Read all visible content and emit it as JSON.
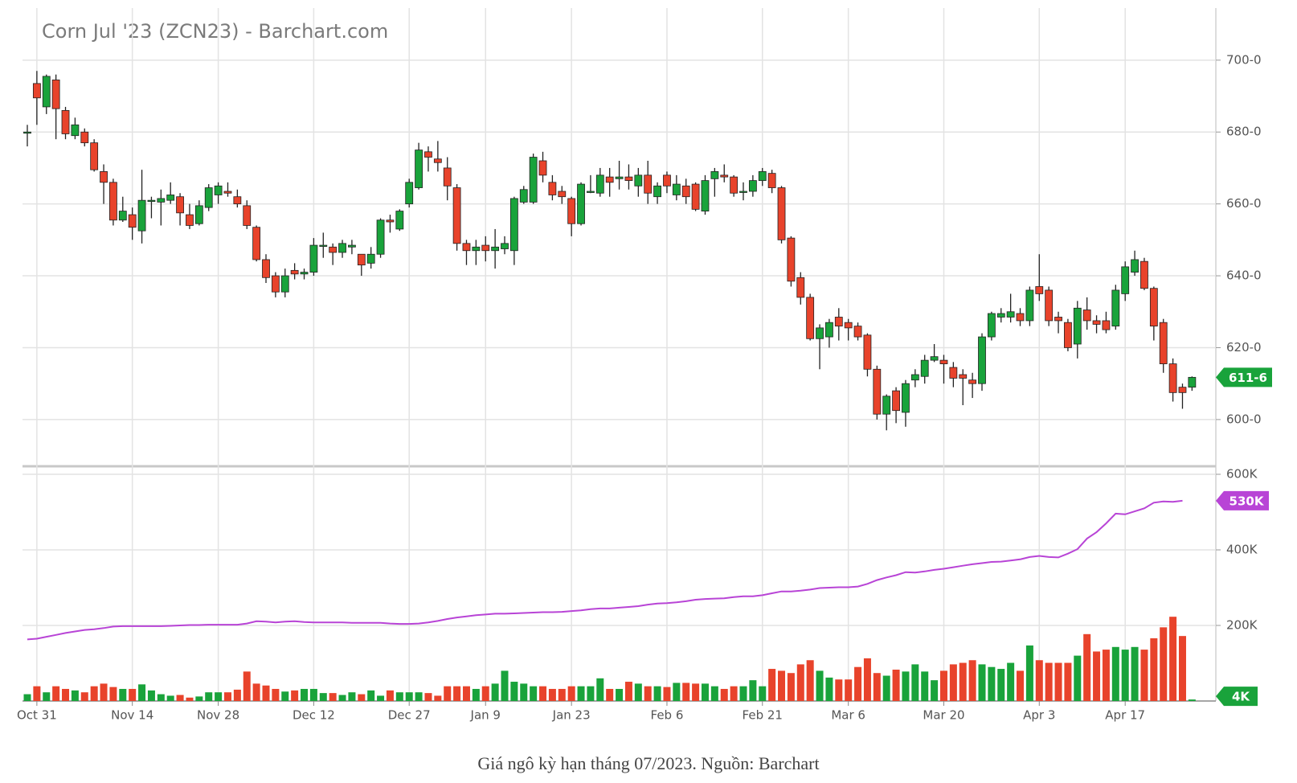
{
  "chart_data": {
    "type": "candlestick",
    "title": "Corn Jul '23 (ZCN23) - Barchart.com",
    "categories": [
      null,
      "Oct 31",
      null,
      null,
      null,
      null,
      null,
      null,
      null,
      null,
      null,
      "Nov 14",
      null,
      null,
      null,
      null,
      null,
      null,
      null,
      null,
      "Nov 28",
      null,
      null,
      null,
      null,
      null,
      null,
      null,
      null,
      null,
      "Dec 12",
      null,
      null,
      null,
      null,
      null,
      null,
      null,
      null,
      null,
      "Dec 27",
      null,
      null,
      null,
      null,
      null,
      null,
      null,
      "Jan 9",
      null,
      null,
      null,
      null,
      null,
      null,
      null,
      null,
      "Jan 23",
      null,
      null,
      null,
      null,
      null,
      null,
      null,
      null,
      null,
      "Feb 6",
      null,
      null,
      null,
      null,
      null,
      null,
      null,
      null,
      null,
      "Feb 21",
      null,
      null,
      null,
      null,
      null,
      null,
      null,
      null,
      "Mar 6",
      null,
      null,
      null,
      null,
      null,
      null,
      null,
      null,
      null,
      "Mar 20",
      null,
      null,
      null,
      null,
      null,
      null,
      null,
      null,
      null,
      "Apr 3",
      null,
      null,
      null,
      null,
      null,
      null,
      null,
      null,
      "Apr 17",
      null,
      null,
      null,
      null,
      null,
      null,
      null
    ],
    "open": [
      680,
      693.5,
      687,
      694.5,
      686,
      679,
      680,
      677,
      669,
      666,
      655.5,
      657,
      652.5,
      661,
      660.5,
      661,
      662,
      657,
      654.5,
      659,
      662.5,
      663.5,
      662,
      659.5,
      653.5,
      644.5,
      640,
      635.5,
      641.5,
      640.5,
      641,
      648.5,
      648,
      646.5,
      648,
      646,
      643.5,
      646,
      655.5,
      653,
      660,
      664.5,
      674.5,
      672.5,
      670,
      664.5,
      649,
      647,
      648.5,
      647,
      647.5,
      647,
      660.5,
      660.5,
      672,
      666,
      663.5,
      661.5,
      654.5,
      663.5,
      663,
      667.5,
      667,
      667.5,
      665,
      668,
      662,
      668,
      662.5,
      665,
      665.5,
      658,
      667,
      668,
      667.5,
      663.5,
      663.5,
      666.5,
      668.5,
      664.5,
      650.5,
      639.5,
      634,
      622.5,
      623,
      628.5,
      627,
      626,
      623.5,
      614,
      601.5,
      608,
      602,
      611,
      612,
      616.5,
      616.5,
      614.5,
      612.5,
      611,
      610,
      623,
      628.5,
      628.5,
      629.5,
      627.5,
      637,
      636,
      628.5,
      627,
      621,
      630.5,
      627.5,
      627.5,
      626,
      635,
      641,
      644,
      636.5,
      627,
      615.5,
      609,
      609
    ],
    "high": [
      682,
      697,
      696,
      696,
      687,
      684,
      681,
      678,
      671,
      667,
      662,
      659,
      669.5,
      662,
      664,
      666,
      663,
      660,
      661,
      665.5,
      666,
      666,
      664,
      661,
      654,
      646,
      641,
      642,
      643.5,
      642,
      650.5,
      652,
      649,
      650,
      650,
      646,
      648,
      656,
      657,
      658.5,
      667,
      677,
      676,
      677.5,
      673,
      665.5,
      650,
      650,
      651,
      653,
      651,
      662,
      665,
      674,
      674.5,
      668,
      665,
      662,
      666,
      668,
      670,
      670,
      672,
      671,
      670,
      672,
      666,
      669,
      668,
      667,
      666,
      668,
      670,
      671,
      668,
      666,
      668,
      670,
      669.5,
      665,
      651,
      641,
      635,
      626.5,
      628,
      631,
      628,
      627,
      624,
      615,
      607,
      609,
      611,
      614,
      618,
      621,
      618,
      616,
      614,
      613,
      624,
      630,
      631,
      635,
      631,
      637,
      646,
      637,
      630,
      628,
      633,
      634,
      629,
      630,
      637.5,
      644,
      647,
      645,
      637,
      628,
      617,
      610,
      612
    ],
    "low": [
      676,
      682,
      685,
      678,
      678,
      678,
      676,
      669,
      660,
      654,
      655,
      650,
      649,
      656,
      654,
      660,
      654,
      653,
      654,
      658,
      660,
      662,
      659,
      653,
      644,
      638,
      634,
      634,
      639,
      639,
      640,
      645,
      643,
      645,
      646,
      640,
      642,
      645,
      652,
      652.5,
      659,
      664,
      669,
      669,
      661,
      647,
      643,
      643,
      644,
      642,
      646,
      643,
      660,
      660,
      666,
      661,
      660,
      651,
      654,
      663,
      662,
      662,
      664,
      664,
      662,
      660,
      660,
      663,
      661,
      660,
      658,
      657,
      662,
      666,
      662,
      661,
      662,
      665,
      663,
      649,
      637,
      632,
      622,
      614,
      620,
      622,
      622,
      622,
      612,
      600,
      597,
      599,
      598,
      609,
      610,
      616,
      610,
      609,
      604,
      606,
      608,
      622,
      627,
      627,
      626,
      626,
      633,
      626,
      624,
      619,
      617,
      625,
      624,
      624,
      625,
      633,
      640,
      636,
      622,
      613,
      605,
      603,
      608
    ],
    "close": [
      680,
      689.5,
      695.5,
      686.5,
      679.5,
      682,
      677,
      669.5,
      666,
      655.5,
      658,
      653.5,
      661,
      661,
      661.5,
      662.5,
      657.5,
      654,
      659.5,
      664.5,
      665,
      663,
      660,
      654,
      644.5,
      639.5,
      635.5,
      640,
      640.5,
      641,
      648.5,
      648.5,
      646.5,
      649,
      648.5,
      643,
      646,
      655.5,
      655,
      658,
      666,
      675,
      673,
      671.5,
      665,
      649,
      647,
      648,
      647,
      648,
      649,
      661.5,
      664,
      673,
      668,
      662.5,
      662,
      654.5,
      665.5,
      663.5,
      668,
      666,
      667.5,
      666.5,
      668,
      663,
      665,
      665,
      665.5,
      662,
      658.5,
      666.5,
      669,
      667.5,
      663,
      663.5,
      666.5,
      669,
      664.5,
      650,
      638.5,
      634,
      622.5,
      625.5,
      627,
      626,
      625.5,
      623,
      614,
      601.5,
      606.5,
      602.5,
      610,
      612.5,
      616.5,
      617.5,
      615.5,
      611.5,
      611.5,
      610,
      623,
      629.5,
      629.5,
      630,
      627.5,
      636,
      635,
      627.5,
      627.5,
      620,
      631,
      627.5,
      626.5,
      625,
      636,
      642.5,
      644.5,
      636.5,
      626,
      615.5,
      607.5,
      607.5,
      611.75
    ],
    "up_color": "#19a33b",
    "down_color": "#e8432b",
    "ylim": [
      587,
      714.5
    ],
    "yticks": [
      {
        "value": 600,
        "label": "600-0"
      },
      {
        "value": 620,
        "label": "620-0"
      },
      {
        "value": 640,
        "label": "640-0"
      },
      {
        "value": 660,
        "label": "660-0"
      },
      {
        "value": 680,
        "label": "680-0"
      },
      {
        "value": 700,
        "label": "700-0"
      }
    ],
    "last_label": "611-6",
    "grid": true,
    "volume": {
      "values": [
        18000,
        39000,
        23000,
        39000,
        32000,
        28000,
        23000,
        39000,
        46000,
        37000,
        32000,
        32000,
        44000,
        28000,
        18000,
        14000,
        16000,
        9000,
        12000,
        23000,
        23000,
        23000,
        30000,
        78000,
        46000,
        41000,
        32000,
        25000,
        28000,
        32000,
        32000,
        21000,
        21000,
        16000,
        23000,
        18000,
        28000,
        14000,
        28000,
        23000,
        23000,
        23000,
        21000,
        14000,
        39000,
        39000,
        39000,
        32000,
        39000,
        46000,
        80000,
        51000,
        46000,
        39000,
        39000,
        32000,
        32000,
        39000,
        39000,
        39000,
        60000,
        32000,
        32000,
        51000,
        46000,
        39000,
        39000,
        37000,
        48000,
        48000,
        46000,
        46000,
        39000,
        32000,
        39000,
        39000,
        55000,
        39000,
        85000,
        80000,
        74000,
        97000,
        108000,
        80000,
        62000,
        57000,
        57000,
        90000,
        113000,
        74000,
        67000,
        83000,
        78000,
        97000,
        78000,
        55000,
        80000,
        97000,
        101000,
        108000,
        97000,
        90000,
        85000,
        101000,
        80000,
        147000,
        108000,
        101000,
        101000,
        101000,
        120000,
        177000,
        131000,
        136000,
        143000,
        136000,
        143000,
        136000,
        166000,
        195000,
        223000,
        172000,
        4000
      ],
      "ylim": [
        0,
        600000
      ],
      "yticks": [
        {
          "value": 200000,
          "label": "200K"
        },
        {
          "value": 400000,
          "label": "400K"
        },
        {
          "value": 600000,
          "label": "600K"
        }
      ],
      "last_label": "4K"
    },
    "open_interest": {
      "values": [
        163000,
        165000,
        170000,
        175000,
        180000,
        184000,
        188000,
        190000,
        193000,
        197000,
        198000,
        198000,
        198000,
        198000,
        198000,
        199000,
        200000,
        201000,
        201000,
        202000,
        202000,
        202000,
        202000,
        205000,
        211000,
        210000,
        208000,
        210000,
        211000,
        209000,
        208000,
        208000,
        208000,
        208000,
        207000,
        207000,
        207000,
        207000,
        205000,
        204000,
        204000,
        205000,
        208000,
        212000,
        217000,
        221000,
        224000,
        227000,
        229000,
        231000,
        231000,
        232000,
        233000,
        234000,
        235000,
        235000,
        236000,
        238000,
        240000,
        243000,
        245000,
        245000,
        247000,
        249000,
        251000,
        255000,
        258000,
        259000,
        261000,
        264000,
        268000,
        270000,
        271000,
        272000,
        275000,
        277000,
        277000,
        280000,
        285000,
        290000,
        290000,
        292000,
        295000,
        299000,
        300000,
        301000,
        301000,
        303000,
        310000,
        320000,
        327000,
        333000,
        341000,
        340000,
        343000,
        347000,
        350000,
        354000,
        358000,
        362000,
        365000,
        368000,
        369000,
        372000,
        375000,
        381000,
        384000,
        381000,
        380000,
        390000,
        402000,
        430000,
        447000,
        470000,
        496000,
        494000,
        502000,
        510000,
        525000,
        528000,
        527000,
        530000,
        null
      ],
      "color": "#b844d6",
      "last_label": "530K"
    }
  },
  "caption": "Giá ngô kỳ hạn tháng 07/2023. Nguồn: Barchart"
}
